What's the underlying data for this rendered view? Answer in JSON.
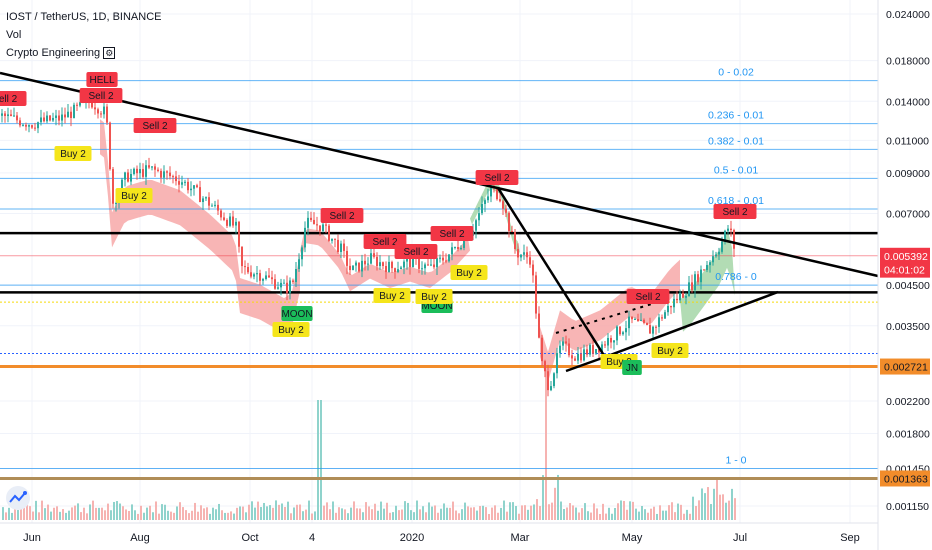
{
  "header": {
    "title": "IOST / TetherUS, 1D, BINANCE",
    "indicator_vol": "Vol",
    "indicator_ce": "Crypto Engineering"
  },
  "price_scale": {
    "ticks": [
      "0.024000",
      "0.018000",
      "0.014000",
      "0.011000",
      "0.009000",
      "0.007000",
      "0.004500",
      "0.003500",
      "0.002200",
      "0.001800",
      "0.001450",
      "0.001150"
    ],
    "tick_values": [
      0.024,
      0.018,
      0.014,
      0.011,
      0.009,
      0.007,
      0.0045,
      0.0035,
      0.0022,
      0.0018,
      0.00145,
      0.00115
    ],
    "badges": [
      {
        "label": "0.005392",
        "bg": "#f23645",
        "color": "#ffffff",
        "value": 0.005392
      },
      {
        "label": "04:01:02",
        "bg": "#f23645",
        "color": "#ffffff",
        "value": 0.00495
      },
      {
        "label": "0.002721",
        "bg": "#f28c2a",
        "color": "#131722",
        "value": 0.002721
      },
      {
        "label": "0.001363",
        "bg": "#f28c2a",
        "color": "#131722",
        "value": 0.001363
      }
    ]
  },
  "time_scale": {
    "labels": [
      "Jun",
      "Aug",
      "Oct",
      "4",
      "2020",
      "Mar",
      "May",
      "Jul",
      "Sep"
    ]
  },
  "fib_levels": [
    {
      "label": "0 - 0.02",
      "value": 0.0159
    },
    {
      "label": "0.236 - 0.01",
      "value": 0.0122
    },
    {
      "label": "0.382 - 0.01",
      "value": 0.0104
    },
    {
      "label": "0.5 - 0.01",
      "value": 0.0087
    },
    {
      "label": "0.618 - 0.01",
      "value": 0.0072
    },
    {
      "label": "0.786 - 0",
      "value": 0.0045
    },
    {
      "label": "1 - 0",
      "value": 0.00145
    }
  ],
  "signals": [
    {
      "text": "HELL",
      "type": "sell"
    },
    {
      "text": "Sell 2",
      "type": "sell"
    },
    {
      "text": "ell 2",
      "type": "sell"
    },
    {
      "text": "Sell 2",
      "type": "sell"
    },
    {
      "text": "Buy 2",
      "type": "buy"
    },
    {
      "text": "Buy 2",
      "type": "buy"
    },
    {
      "text": "Sell 2",
      "type": "sell"
    },
    {
      "text": "Sell 2",
      "type": "sell"
    },
    {
      "text": "Sell 2",
      "type": "sell"
    },
    {
      "text": "Sell 2",
      "type": "sell"
    },
    {
      "text": "Sell 2",
      "type": "sell"
    },
    {
      "text": "Buy 2",
      "type": "buy"
    },
    {
      "text": "Buy 2",
      "type": "buy"
    },
    {
      "text": "MOON",
      "type": "moon"
    },
    {
      "text": "Buy 2",
      "type": "buy"
    },
    {
      "text": "Buy 2",
      "type": "buy"
    },
    {
      "text": "MOON",
      "type": "moon"
    },
    {
      "text": "Buy 2",
      "type": "buy"
    },
    {
      "text": "Sell 2",
      "type": "sell"
    },
    {
      "text": "Sell 2",
      "type": "sell"
    },
    {
      "text": "Buy 2",
      "type": "buy"
    },
    {
      "text": "JN",
      "type": "moon"
    },
    {
      "text": "Buy 2",
      "type": "buy"
    },
    {
      "text": "Sell 2",
      "type": "sell"
    }
  ],
  "colors": {
    "candle_up": "#26a69a",
    "candle_down": "#ef5350",
    "cloud_red": "#f7a8a8",
    "cloud_green": "#a5d6a7",
    "fib_line": "#2196f3",
    "orange_line": "#f28c2a",
    "sell_label": "#f23645",
    "buy_label": "#f5e51b",
    "moon_label": "#1bbd5a"
  }
}
